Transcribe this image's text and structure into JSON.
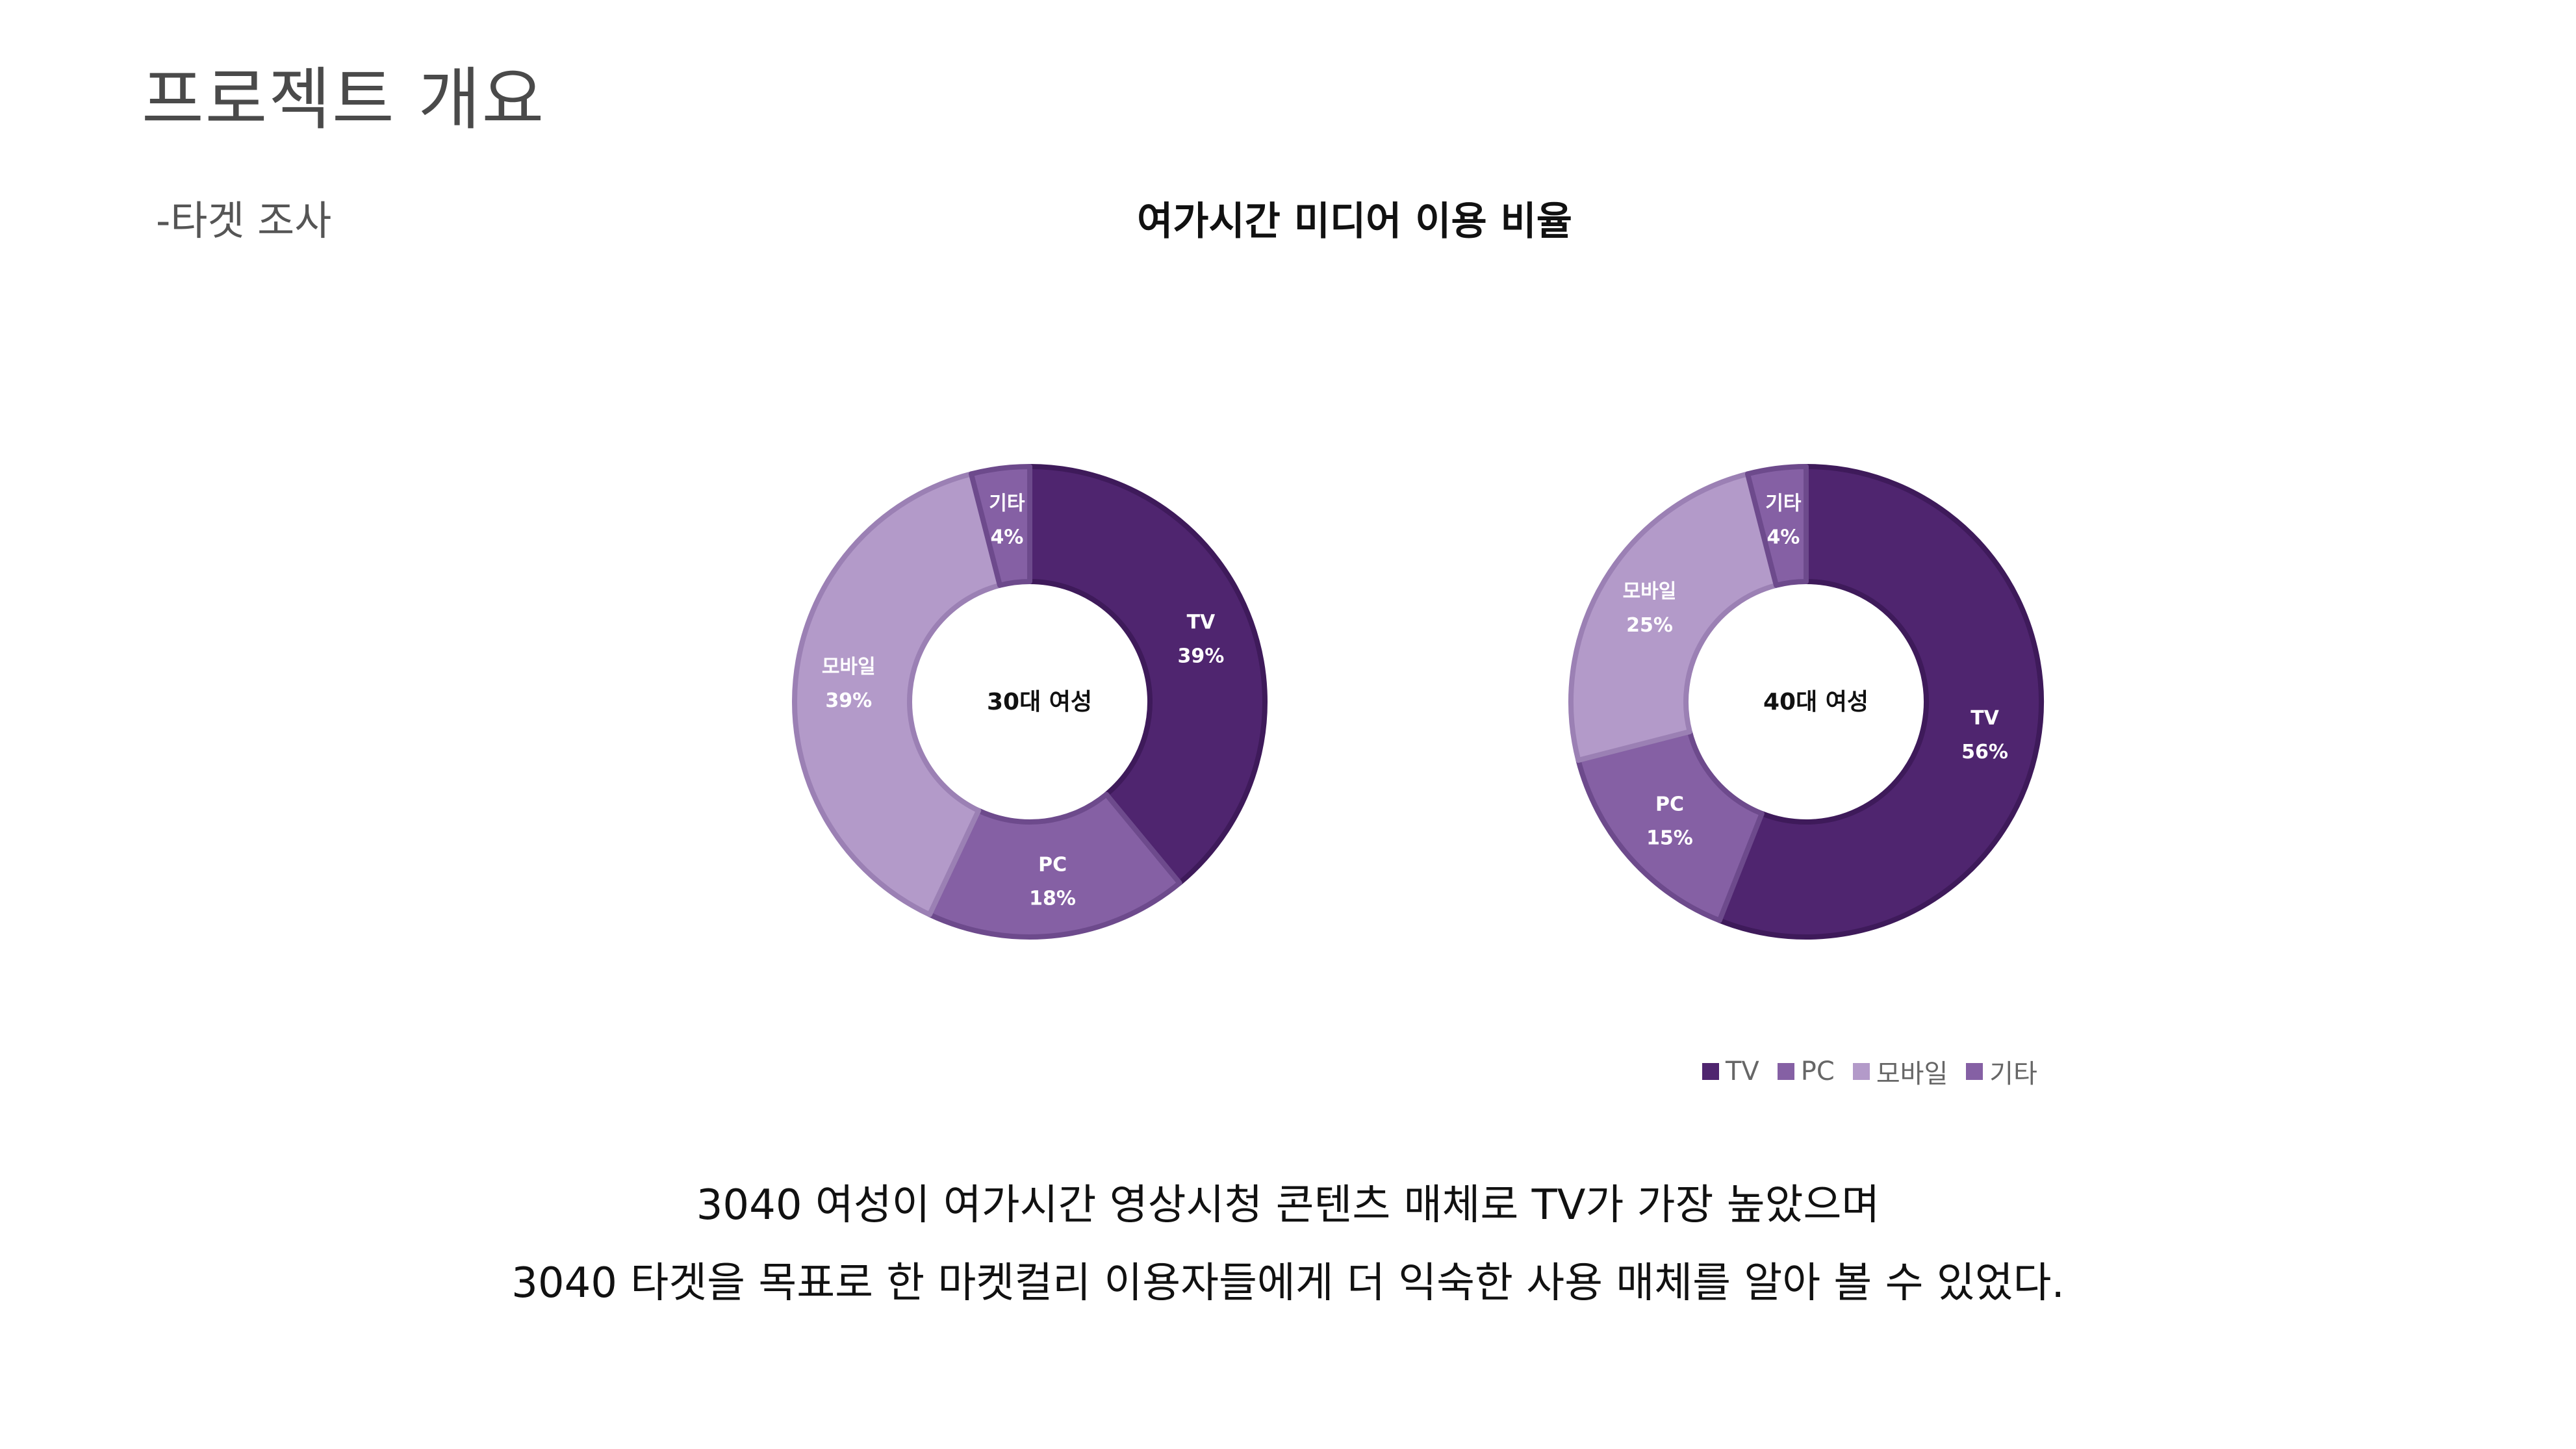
{
  "page": {
    "title": "프로젝트 개요",
    "section_label": "-타겟 조사"
  },
  "chart_title": "여가시간 미디어 이용 비율",
  "colors": {
    "TV": "#4f256f",
    "PC": "#8560a4",
    "모바일": "#b39ac9",
    "기타": "#8560a4",
    "border_tv": "#3e1a5a",
    "border_pc": "#6d4a8c",
    "border_mobile": "#9b80b4",
    "border_etc": "#6d4a8c"
  },
  "chart_data": [
    {
      "type": "pie",
      "center_label": "30대 여성",
      "categories": [
        "TV",
        "PC",
        "모바일",
        "기타"
      ],
      "values": [
        39,
        18,
        39,
        4
      ],
      "value_labels": [
        "39%",
        "18%",
        "39%",
        "4%"
      ]
    },
    {
      "type": "pie",
      "center_label": "40대 여성",
      "categories": [
        "TV",
        "PC",
        "모바일",
        "기타"
      ],
      "values": [
        56,
        15,
        25,
        4
      ],
      "value_labels": [
        "56%",
        "15%",
        "25%",
        "4%"
      ]
    }
  ],
  "legend": {
    "placement": "bottom-right",
    "items": [
      "TV",
      "PC",
      "모바일",
      "기타"
    ]
  },
  "summary": {
    "line1": "3040 여성이 여가시간 영상시청 콘텐츠 매체로  TV가 가장 높았으며",
    "line2": "3040 타겟을 목표로 한 마켓컬리 이용자들에게 더 익숙한 사용 매체를 알아 볼 수 있었다."
  }
}
